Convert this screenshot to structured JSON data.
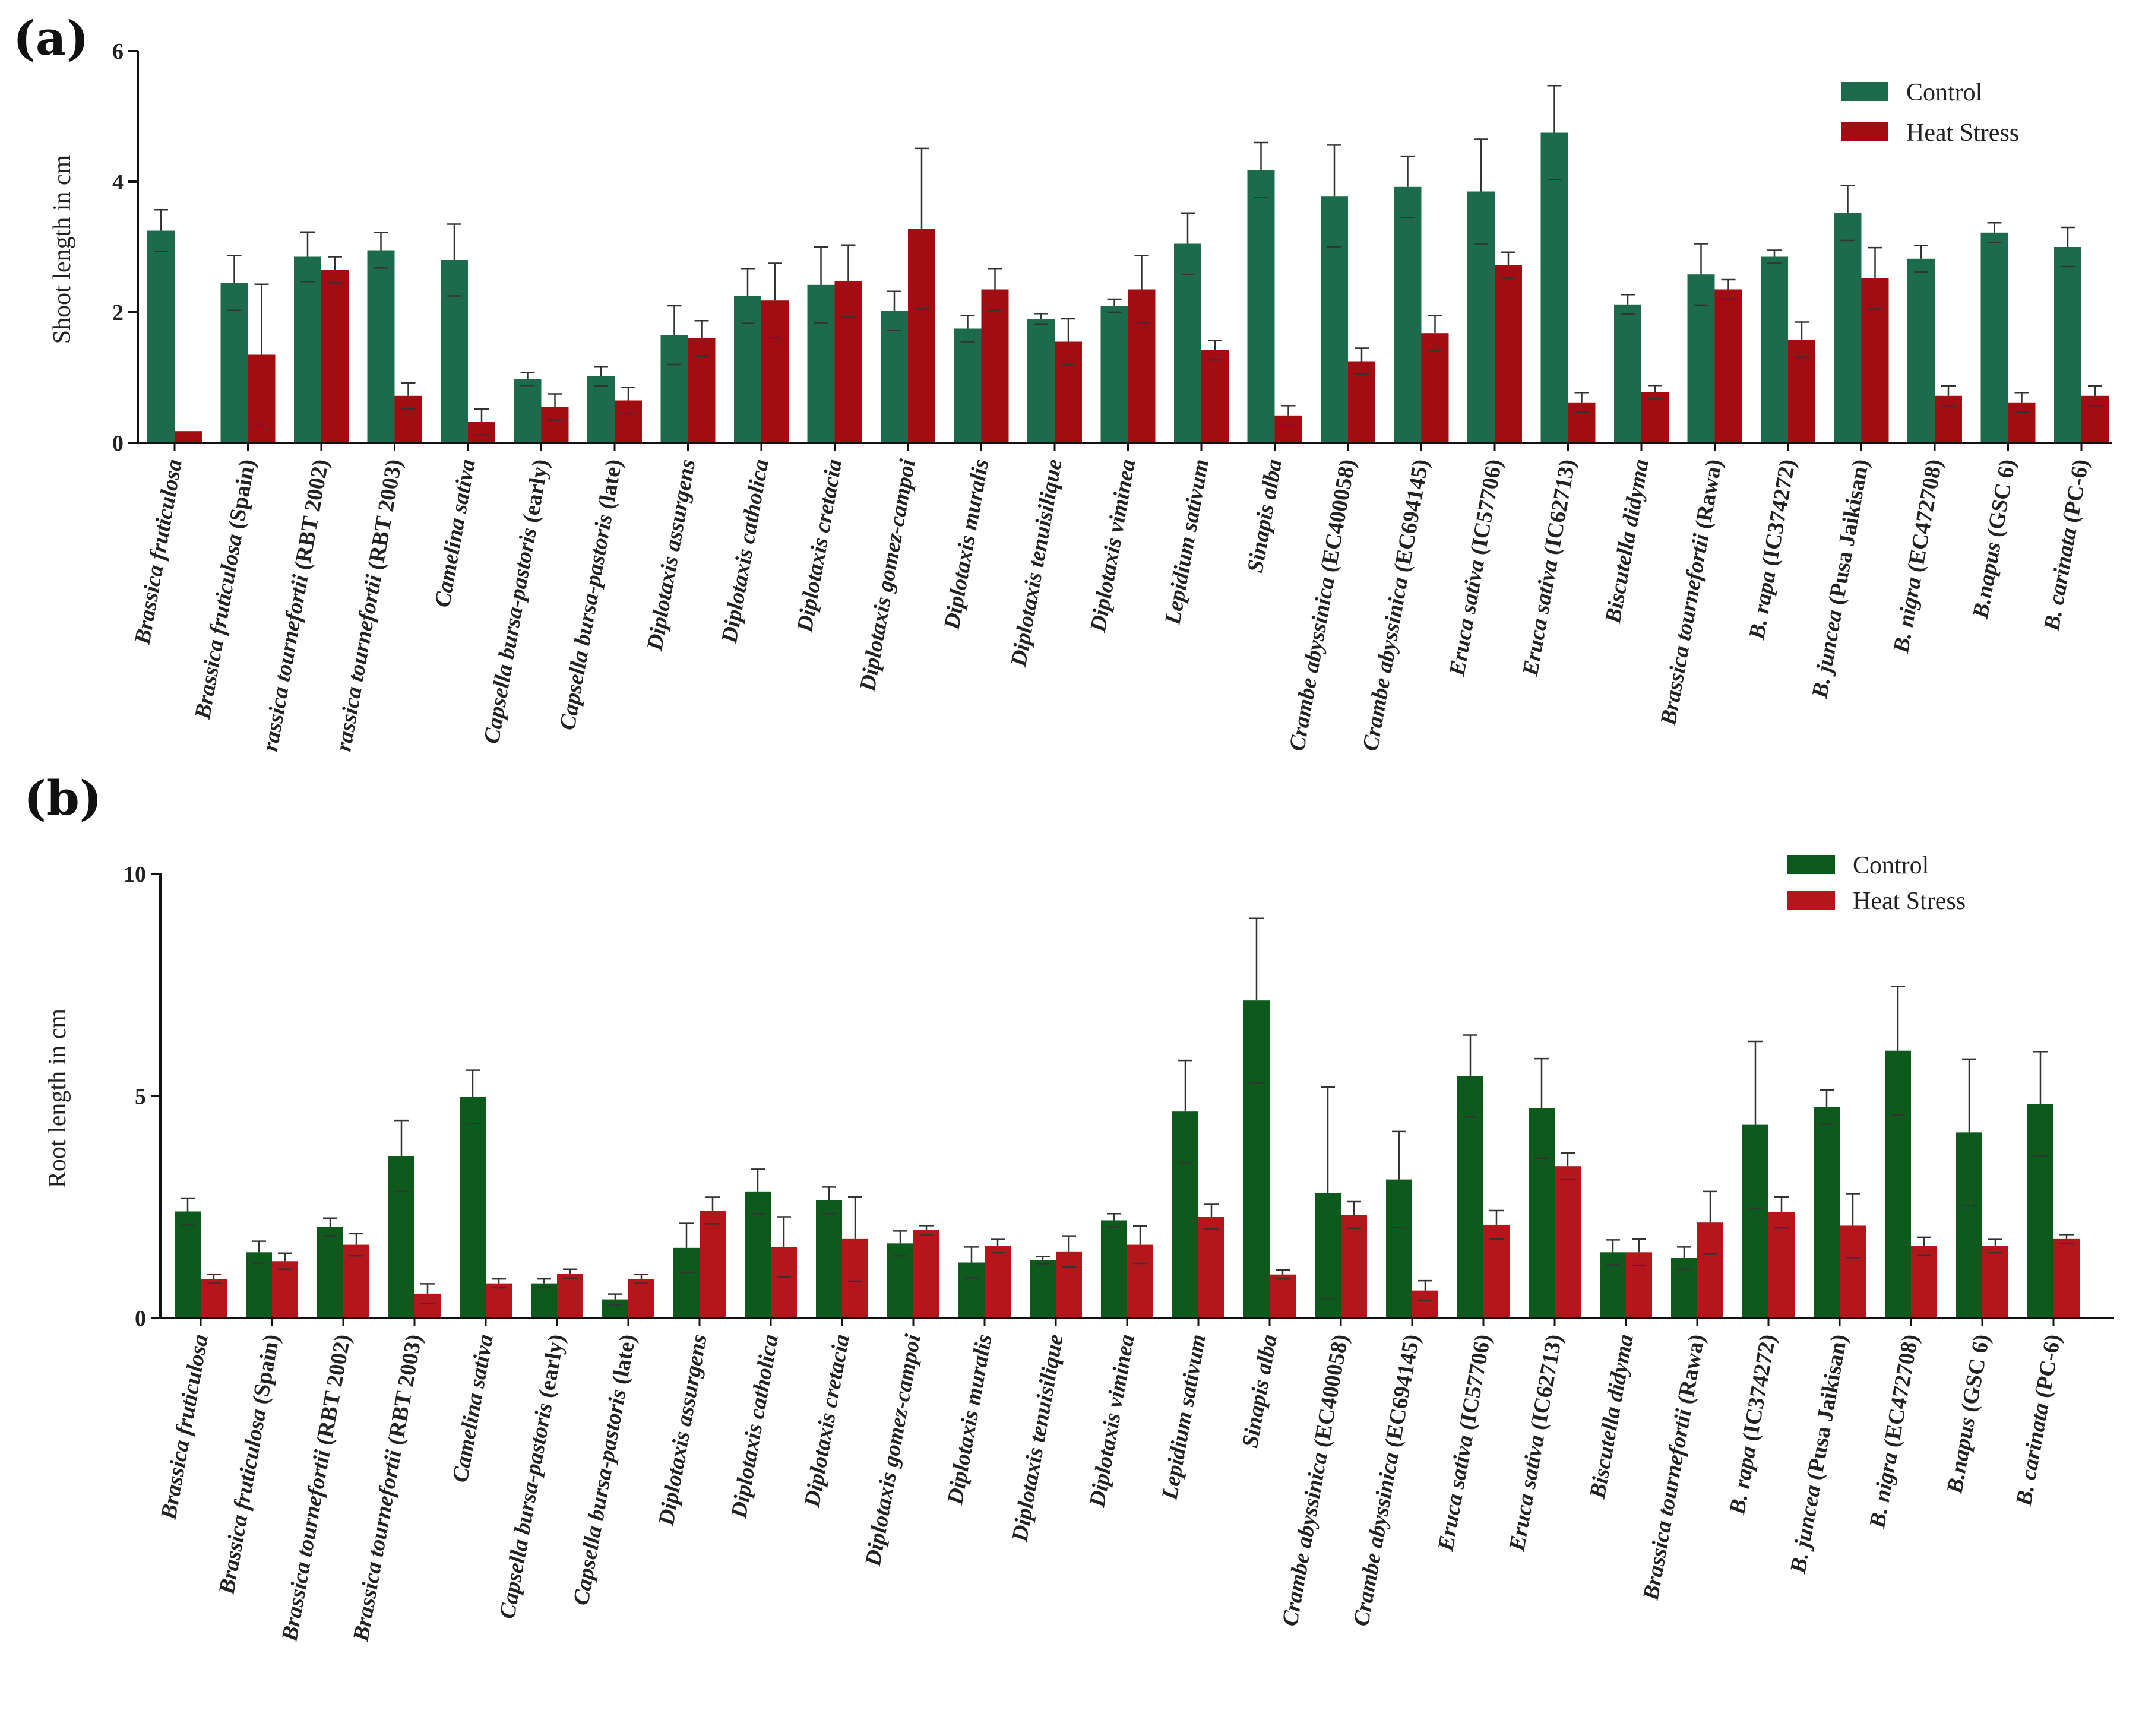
{
  "colors": {
    "control_a": "#1c6b4c",
    "heat_a": "#a10d12",
    "control_b": "#0e5a1c",
    "heat_b": "#b3171c"
  },
  "categories": [
    {
      "genus": "Brassica fruticulosa",
      "suffix": ""
    },
    {
      "genus": "Brassica fruticulosa",
      "suffix": " (Spain)"
    },
    {
      "genus": "Brassica tournefortii",
      "suffix": " (RBT 2002)"
    },
    {
      "genus": "Brassica tournefortii",
      "suffix": " (RBT 2003)"
    },
    {
      "genus": "Camelina sativa",
      "suffix": ""
    },
    {
      "genus": "Capsella bursa-pastoris",
      "suffix": " (early)"
    },
    {
      "genus": "Capsella bursa-pastoris",
      "suffix": " (late)"
    },
    {
      "genus": "Diplotaxis assurgens",
      "suffix": ""
    },
    {
      "genus": "Diplotaxis catholica",
      "suffix": ""
    },
    {
      "genus": "Diplotaxis cretacia",
      "suffix": ""
    },
    {
      "genus": "Diplotaxis gomez-campoi",
      "suffix": ""
    },
    {
      "genus": "Diplotaxis muralis",
      "suffix": ""
    },
    {
      "genus": "Diplotaxis tenuisilique",
      "suffix": ""
    },
    {
      "genus": "Diplotaxis viminea",
      "suffix": ""
    },
    {
      "genus": "Lepidium sativum",
      "suffix": ""
    },
    {
      "genus": "Sinapis alba",
      "suffix": ""
    },
    {
      "genus": "Crambe abyssinica",
      "suffix": " (EC400058)"
    },
    {
      "genus": "Crambe abyssinica",
      "suffix": " (EC694145)"
    },
    {
      "genus": "Eruca sativa",
      "suffix": " (IC57706)"
    },
    {
      "genus": "Eruca sativa",
      "suffix": " (IC62713)"
    },
    {
      "genus": "Biscutella didyma",
      "suffix": ""
    },
    {
      "genus": "Brassica tournefortii",
      "suffix": " (Rawa)"
    },
    {
      "genus": "B. rapa",
      "suffix": " (IC374272)"
    },
    {
      "genus": "B. juncea",
      "suffix": " (Pusa Jaikisan)"
    },
    {
      "genus": "B. nigra",
      "suffix": " (EC472708)"
    },
    {
      "genus": "B.napus",
      "suffix": " (GSC 6)"
    },
    {
      "genus": "B. carinata",
      "suffix": " (PC-6)"
    }
  ],
  "chart_data": [
    {
      "type": "bar",
      "panel_label": "(a)",
      "ylabel": "Shoot length in cm",
      "ylim": [
        0,
        6
      ],
      "yticks": [
        0,
        2,
        4,
        6
      ],
      "legend": [
        "Control",
        "Heat Stress"
      ],
      "legend_position": "top-right",
      "category_labels": [
        {
          "genus": "Brassica fruticulosa",
          "suffix": ""
        },
        {
          "genus": "Brassica fruticulosa",
          "suffix": " (Spain)"
        },
        {
          "genus": "rassica tournefortii",
          "suffix": " (RBT 2002)"
        },
        {
          "genus": "rassica tournefortii",
          "suffix": " (RBT 2003)"
        },
        {
          "genus": "Camelina sativa",
          "suffix": ""
        },
        {
          "genus": "Capsella bursa-pastoris",
          "suffix": " (early)"
        },
        {
          "genus": "Capsella bursa-pastoris",
          "suffix": " (late)"
        },
        {
          "genus": "Diplotaxis assurgens",
          "suffix": ""
        },
        {
          "genus": "Diplotaxis catholica",
          "suffix": ""
        },
        {
          "genus": "Diplotaxis cretacia",
          "suffix": ""
        },
        {
          "genus": "Diplotaxis gomez-campoi",
          "suffix": ""
        },
        {
          "genus": "Diplotaxis muralis",
          "suffix": ""
        },
        {
          "genus": "Diplotaxis tenuisilique",
          "suffix": ""
        },
        {
          "genus": "Diplotaxis viminea",
          "suffix": ""
        },
        {
          "genus": "Lepidium sativum",
          "suffix": ""
        },
        {
          "genus": "Sinapis alba",
          "suffix": ""
        },
        {
          "genus": "Crambe abyssinica",
          "suffix": " (EC400058)"
        },
        {
          "genus": "Crambe abyssinica",
          "suffix": " (EC694145)"
        },
        {
          "genus": "Eruca sativa",
          "suffix": " (IC57706)"
        },
        {
          "genus": "Eruca sativa",
          "suffix": " (IC62713)"
        },
        {
          "genus": "Biscutella didyma",
          "suffix": ""
        },
        {
          "genus": "Brassica tournefortii",
          "suffix": " (Rawa)"
        },
        {
          "genus": "B. rapa",
          "suffix": " (IC374272)"
        },
        {
          "genus": "B. juncea",
          "suffix": " (Pusa Jaikisan)"
        },
        {
          "genus": "B. nigra",
          "suffix": " (EC472708)"
        },
        {
          "genus": "B.napus",
          "suffix": " (GSC 6)"
        },
        {
          "genus": "B. carinata",
          "suffix": " (PC-6)"
        }
      ],
      "series": [
        {
          "name": "Control",
          "values": [
            3.25,
            2.45,
            2.85,
            2.95,
            2.8,
            0.98,
            1.02,
            1.65,
            2.25,
            2.42,
            2.02,
            1.75,
            1.9,
            2.1,
            3.05,
            4.18,
            3.78,
            3.92,
            3.85,
            4.75,
            2.12,
            2.58,
            2.85,
            3.52,
            2.82,
            3.22,
            3.0
          ],
          "errors": [
            0.32,
            0.42,
            0.38,
            0.27,
            0.55,
            0.1,
            0.15,
            0.45,
            0.42,
            0.58,
            0.3,
            0.2,
            0.08,
            0.1,
            0.47,
            0.42,
            0.78,
            0.47,
            0.8,
            0.72,
            0.15,
            0.47,
            0.1,
            0.42,
            0.2,
            0.15,
            0.3
          ]
        },
        {
          "name": "Heat Stress",
          "values": [
            0.18,
            1.35,
            2.65,
            0.72,
            0.32,
            0.55,
            0.65,
            1.6,
            2.18,
            2.48,
            3.28,
            2.35,
            1.55,
            2.35,
            1.42,
            0.42,
            1.25,
            1.68,
            2.72,
            0.62,
            0.78,
            2.35,
            1.58,
            2.52,
            0.72,
            0.62,
            0.72
          ]
        },
        {
          "name": "Heat Stress errors",
          "values": [
            0.0,
            1.08,
            0.2,
            0.2,
            0.2,
            0.2,
            0.2,
            0.27,
            0.57,
            0.55,
            1.23,
            0.32,
            0.35,
            0.52,
            0.15,
            0.15,
            0.2,
            0.27,
            0.2,
            0.15,
            0.1,
            0.15,
            0.27,
            0.47,
            0.15,
            0.15,
            0.15
          ]
        }
      ]
    },
    {
      "type": "bar",
      "panel_label": "(b)",
      "ylabel": "Root length in cm",
      "ylim": [
        0,
        10
      ],
      "yticks": [
        0,
        5,
        10
      ],
      "legend": [
        "Control",
        "Heat Stress"
      ],
      "legend_position": "top-right",
      "series": [
        {
          "name": "Control",
          "values": [
            2.4,
            1.48,
            2.05,
            3.65,
            4.98,
            0.78,
            0.42,
            1.58,
            2.85,
            2.65,
            1.68,
            1.25,
            1.3,
            2.2,
            4.65,
            7.15,
            2.82,
            3.12,
            5.45,
            4.72,
            1.48,
            1.35,
            4.35,
            4.75,
            6.02,
            4.18,
            4.82
          ],
          "errors": [
            0.3,
            0.25,
            0.2,
            0.8,
            0.6,
            0.1,
            0.12,
            0.55,
            0.5,
            0.3,
            0.28,
            0.35,
            0.08,
            0.15,
            1.15,
            1.85,
            2.38,
            1.08,
            0.92,
            1.12,
            0.28,
            0.25,
            1.88,
            0.38,
            1.45,
            1.65,
            1.18
          ]
        },
        {
          "name": "Heat Stress",
          "values": [
            0.88,
            1.28,
            1.65,
            0.55,
            0.78,
            1.0,
            0.88,
            2.42,
            1.6,
            1.78,
            1.98,
            1.62,
            1.5,
            1.65,
            2.28,
            0.98,
            2.32,
            0.62,
            2.1,
            3.42,
            1.48,
            2.15,
            2.38,
            2.08,
            1.62,
            1.62,
            1.78
          ]
        },
        {
          "name": "Heat Stress errors",
          "values": [
            0.1,
            0.18,
            0.25,
            0.22,
            0.1,
            0.1,
            0.1,
            0.3,
            0.68,
            0.95,
            0.1,
            0.15,
            0.35,
            0.42,
            0.28,
            0.1,
            0.3,
            0.22,
            0.32,
            0.3,
            0.3,
            0.7,
            0.35,
            0.72,
            0.2,
            0.15,
            0.1
          ]
        }
      ]
    }
  ]
}
